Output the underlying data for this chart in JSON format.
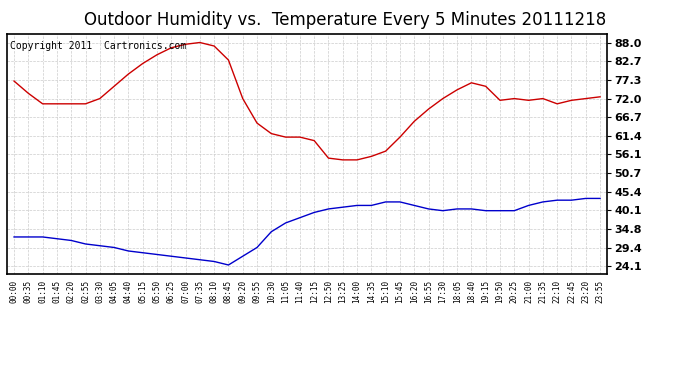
{
  "title": "Outdoor Humidity vs.  Temperature Every 5 Minutes 20111218",
  "copyright": "Copyright 2011  Cartronics.com",
  "background_color": "#ffffff",
  "plot_bg_color": "#ffffff",
  "grid_color": "#cccccc",
  "red_line_color": "#cc0000",
  "blue_line_color": "#0000cc",
  "y_ticks": [
    24.1,
    29.4,
    34.8,
    40.1,
    45.4,
    50.7,
    56.1,
    61.4,
    66.7,
    72.0,
    77.3,
    82.7,
    88.0
  ],
  "y_min": 22.0,
  "y_max": 90.5,
  "x_labels": [
    "00:00",
    "00:35",
    "01:10",
    "01:45",
    "02:20",
    "02:55",
    "03:30",
    "04:05",
    "04:40",
    "05:15",
    "05:50",
    "06:25",
    "07:00",
    "07:35",
    "08:10",
    "08:45",
    "09:20",
    "09:55",
    "10:30",
    "11:05",
    "11:40",
    "12:15",
    "12:50",
    "13:25",
    "14:00",
    "14:35",
    "15:10",
    "15:45",
    "16:20",
    "16:55",
    "17:30",
    "18:05",
    "18:40",
    "19:15",
    "19:50",
    "20:25",
    "21:00",
    "21:35",
    "22:10",
    "22:45",
    "23:20",
    "23:55"
  ],
  "red_data": [
    77.0,
    73.5,
    70.5,
    70.5,
    70.5,
    70.5,
    72.0,
    75.5,
    79.0,
    82.0,
    84.5,
    86.5,
    87.5,
    88.0,
    87.0,
    83.0,
    72.0,
    65.0,
    62.0,
    61.0,
    61.0,
    60.0,
    55.0,
    54.5,
    54.5,
    55.5,
    57.0,
    61.0,
    65.5,
    69.0,
    72.0,
    74.5,
    76.5,
    75.5,
    71.5,
    72.0,
    71.5,
    72.0,
    70.5,
    71.5,
    72.0,
    72.5
  ],
  "blue_data": [
    32.5,
    32.5,
    32.5,
    32.0,
    31.5,
    30.5,
    30.0,
    29.5,
    28.5,
    28.0,
    27.5,
    27.0,
    26.5,
    26.0,
    25.5,
    24.5,
    27.0,
    29.5,
    34.0,
    36.5,
    38.0,
    39.5,
    40.5,
    41.0,
    41.5,
    41.5,
    42.5,
    42.5,
    41.5,
    40.5,
    40.0,
    40.5,
    40.5,
    40.0,
    40.0,
    40.0,
    41.5,
    42.5,
    43.0,
    43.0,
    43.5,
    43.5
  ],
  "title_fontsize": 12,
  "copyright_fontsize": 7,
  "ytick_fontsize": 8,
  "xtick_fontsize": 5.5
}
